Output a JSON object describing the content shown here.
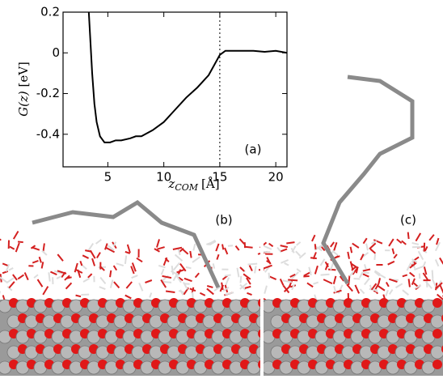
{
  "chart_data": {
    "type": "line",
    "x_label": {
      "variable": "z",
      "subscript": "COM",
      "unit": "[Å]"
    },
    "y_label": {
      "variable": "G(z)",
      "unit": "[eV]"
    },
    "annotations": {
      "panel_a": "(a)",
      "panel_b": "(b)",
      "panel_c": "(c)"
    },
    "x": [
      3.3,
      3.45,
      3.6,
      3.8,
      4.0,
      4.3,
      4.7,
      5.2,
      5.7,
      6.2,
      7.0,
      7.5,
      8.0,
      9.0,
      10.0,
      11.0,
      12.0,
      13.0,
      13.5,
      14.0,
      14.5,
      15.0,
      15.5,
      16.0,
      17.0,
      18.0,
      19.0,
      20.0,
      21.0
    ],
    "series": [
      {
        "color": "#000000",
        "values": [
          0.2,
          0.05,
          -0.1,
          -0.25,
          -0.34,
          -0.41,
          -0.44,
          -0.44,
          -0.43,
          -0.43,
          -0.42,
          -0.41,
          -0.41,
          -0.38,
          -0.34,
          -0.28,
          -0.22,
          -0.17,
          -0.14,
          -0.11,
          -0.06,
          -0.01,
          0.01,
          0.01,
          0.01,
          0.01,
          0.005,
          0.01,
          0.0
        ]
      }
    ],
    "xlim": [
      1,
      21
    ],
    "ylim": [
      -0.56,
      0.2
    ],
    "xticks": [
      5,
      10,
      15,
      20
    ],
    "yticks": [
      0.2,
      0,
      -0.2,
      -0.4
    ],
    "reference_line_x": 15
  }
}
